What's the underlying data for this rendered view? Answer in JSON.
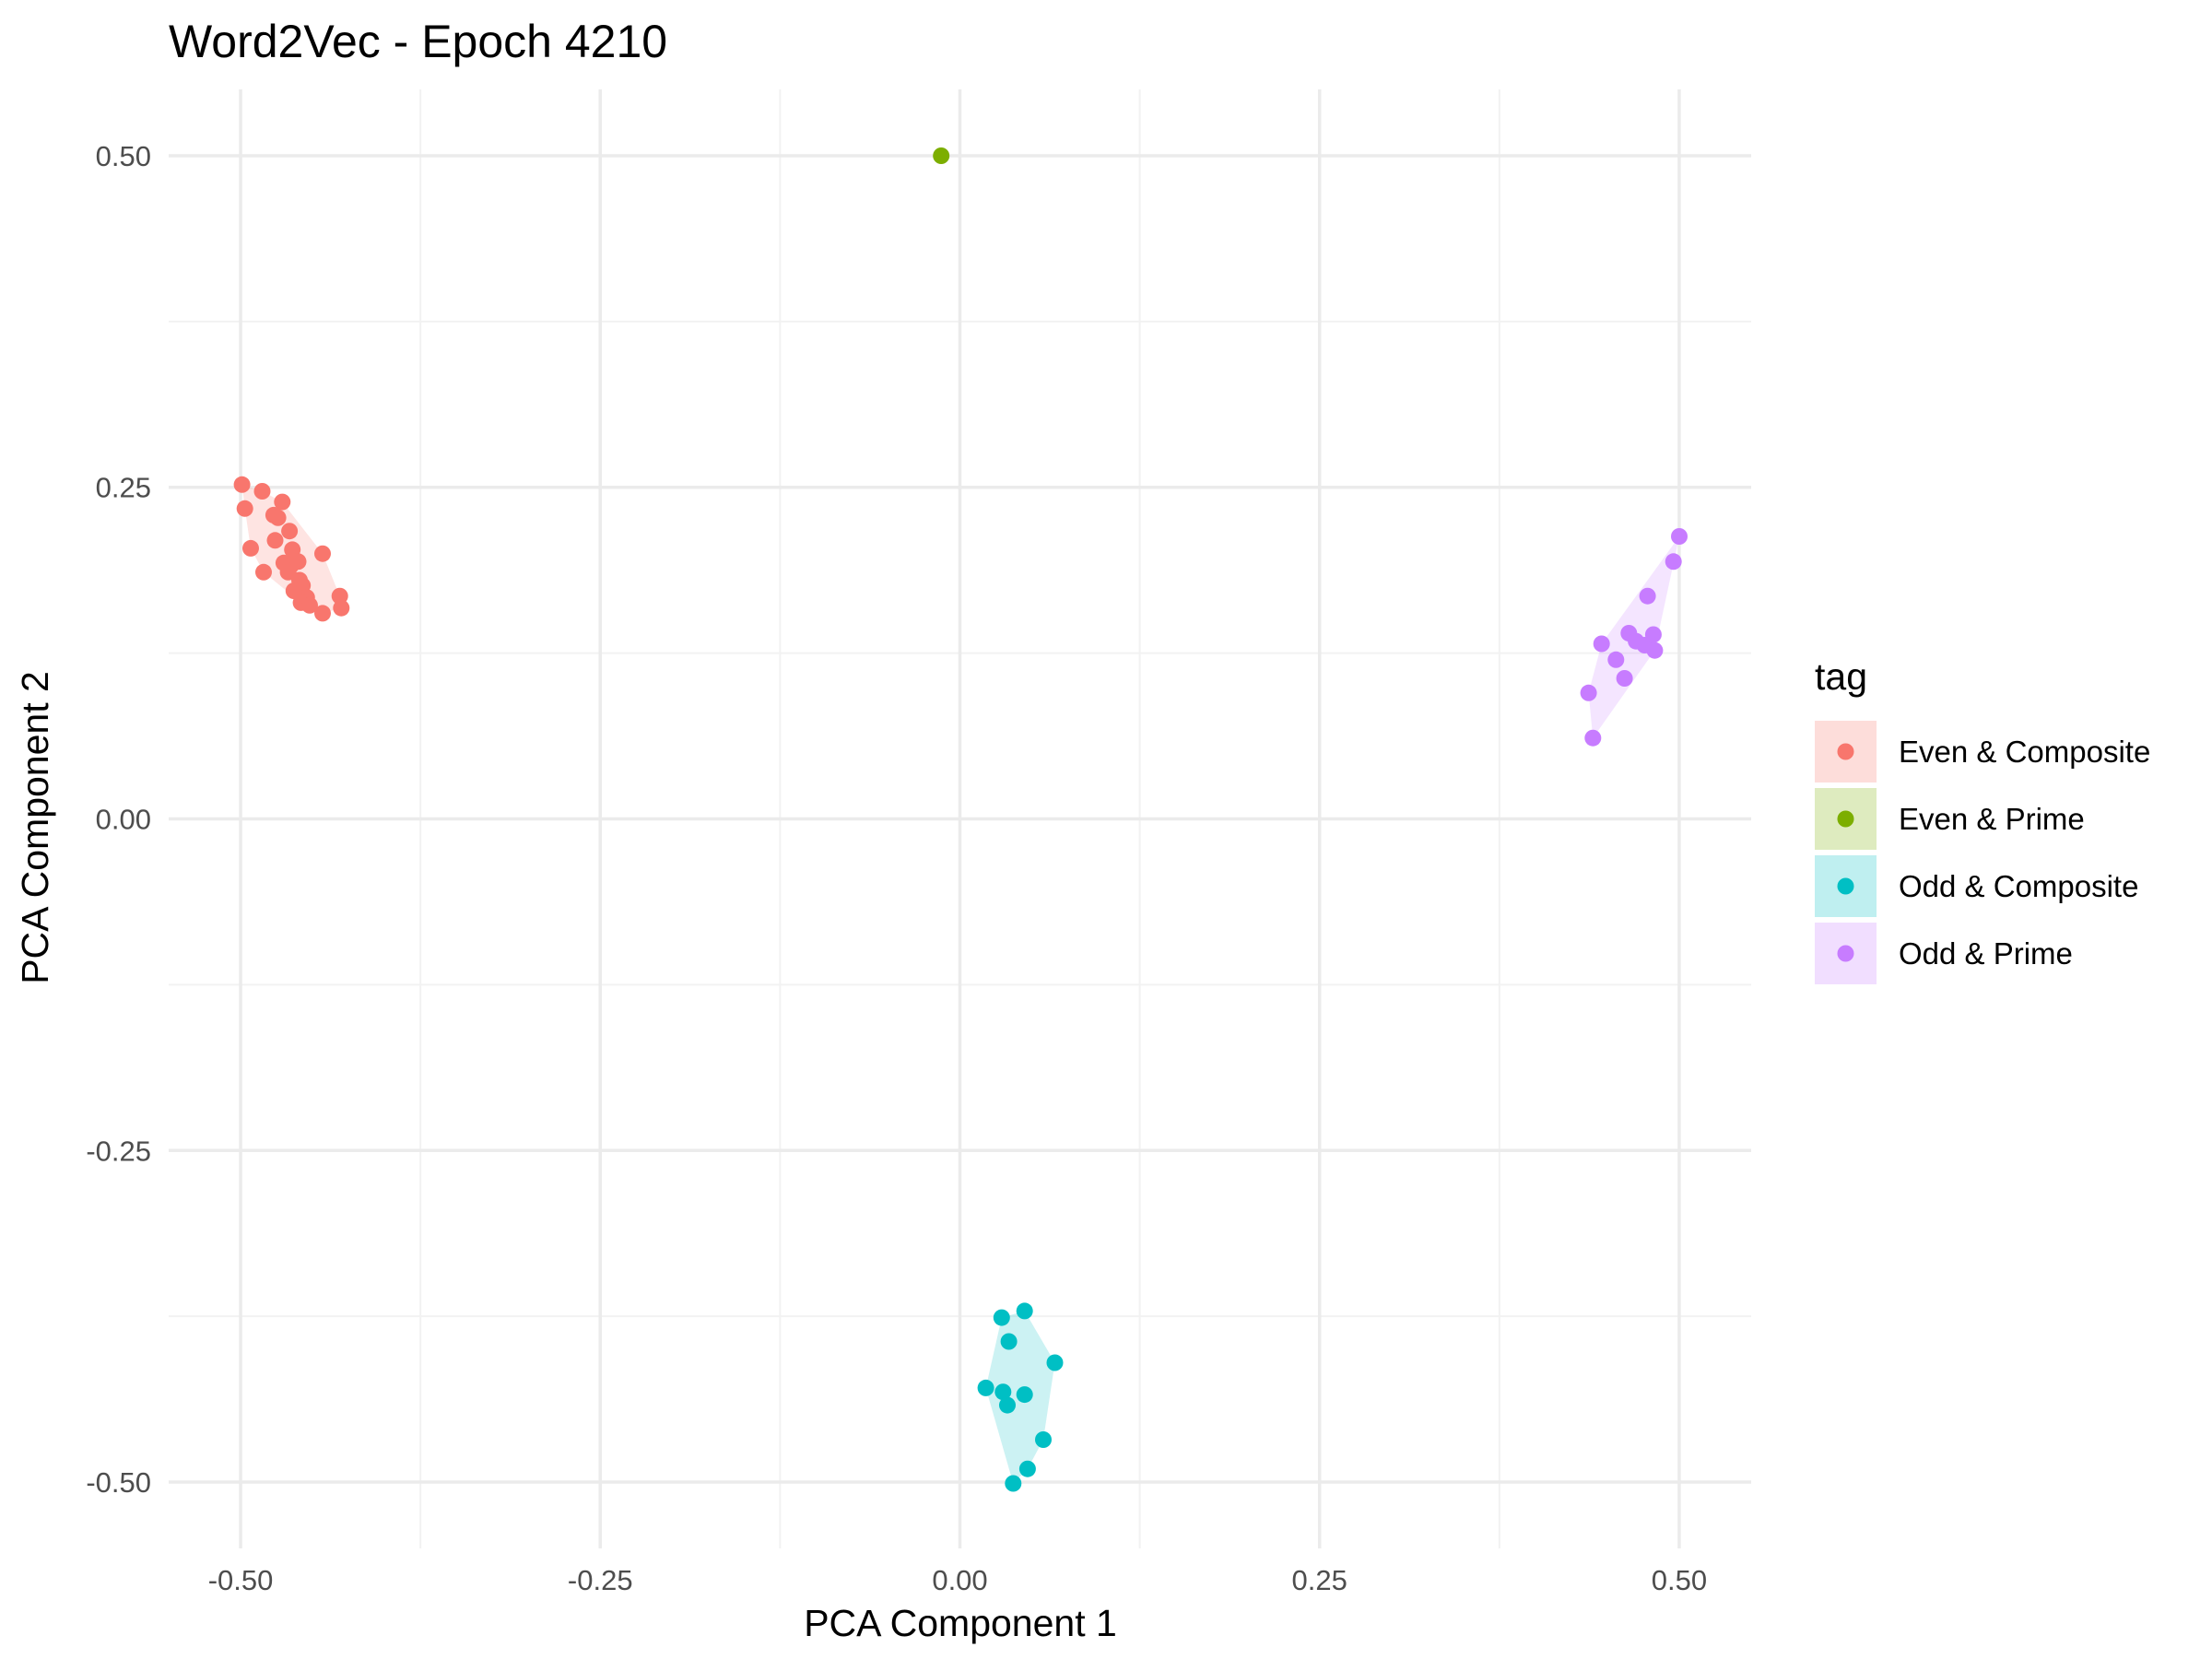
{
  "chart_data": {
    "type": "scatter",
    "title": "Word2Vec - Epoch 4210",
    "xlabel": "PCA Component 1",
    "ylabel": "PCA Component 2",
    "xlim": [
      -0.55,
      0.55
    ],
    "ylim": [
      -0.55,
      0.55
    ],
    "x_ticks": [
      -0.5,
      -0.25,
      0.0,
      0.25,
      0.5
    ],
    "x_tick_labels": [
      "-0.50",
      "-0.25",
      "0.00",
      "0.25",
      "0.50"
    ],
    "y_ticks": [
      -0.5,
      -0.25,
      0.0,
      0.25,
      0.5
    ],
    "y_tick_labels": [
      "-0.50",
      "-0.25",
      "0.00",
      "0.25",
      "0.50"
    ],
    "grid": true,
    "legend": {
      "title": "tag",
      "position": "right"
    },
    "series": [
      {
        "name": "Even & Composite",
        "color": "#F8766D",
        "hull": true,
        "points": [
          [
            -0.499,
            0.252
          ],
          [
            -0.485,
            0.247
          ],
          [
            -0.497,
            0.234
          ],
          [
            -0.471,
            0.239
          ],
          [
            -0.477,
            0.229
          ],
          [
            -0.474,
            0.227
          ],
          [
            -0.466,
            0.217
          ],
          [
            -0.476,
            0.21
          ],
          [
            -0.493,
            0.204
          ],
          [
            -0.464,
            0.203
          ],
          [
            -0.443,
            0.2
          ],
          [
            -0.47,
            0.193
          ],
          [
            -0.465,
            0.191
          ],
          [
            -0.46,
            0.194
          ],
          [
            -0.467,
            0.186
          ],
          [
            -0.484,
            0.186
          ],
          [
            -0.459,
            0.18
          ],
          [
            -0.457,
            0.176
          ],
          [
            -0.463,
            0.172
          ],
          [
            -0.458,
            0.17
          ],
          [
            -0.454,
            0.167
          ],
          [
            -0.431,
            0.168
          ],
          [
            -0.458,
            0.163
          ],
          [
            -0.452,
            0.161
          ],
          [
            -0.43,
            0.159
          ],
          [
            -0.443,
            0.155
          ]
        ]
      },
      {
        "name": "Even & Prime",
        "color": "#7CAE00",
        "hull": true,
        "points": [
          [
            -0.013,
            0.5
          ]
        ]
      },
      {
        "name": "Odd & Composite",
        "color": "#00BFC4",
        "hull": true,
        "points": [
          [
            0.045,
            -0.371
          ],
          [
            0.029,
            -0.376
          ],
          [
            0.034,
            -0.394
          ],
          [
            0.066,
            -0.41
          ],
          [
            0.018,
            -0.429
          ],
          [
            0.03,
            -0.432
          ],
          [
            0.045,
            -0.434
          ],
          [
            0.033,
            -0.442
          ],
          [
            0.058,
            -0.468
          ],
          [
            0.047,
            -0.49
          ],
          [
            0.037,
            -0.501
          ]
        ]
      },
      {
        "name": "Odd & Prime",
        "color": "#C77CFF",
        "hull": true,
        "points": [
          [
            0.5,
            0.213
          ],
          [
            0.496,
            0.194
          ],
          [
            0.478,
            0.168
          ],
          [
            0.446,
            0.132
          ],
          [
            0.465,
            0.14
          ],
          [
            0.47,
            0.134
          ],
          [
            0.476,
            0.131
          ],
          [
            0.482,
            0.139
          ],
          [
            0.483,
            0.127
          ],
          [
            0.456,
            0.12
          ],
          [
            0.462,
            0.106
          ],
          [
            0.437,
            0.095
          ],
          [
            0.44,
            0.061
          ]
        ]
      }
    ]
  }
}
